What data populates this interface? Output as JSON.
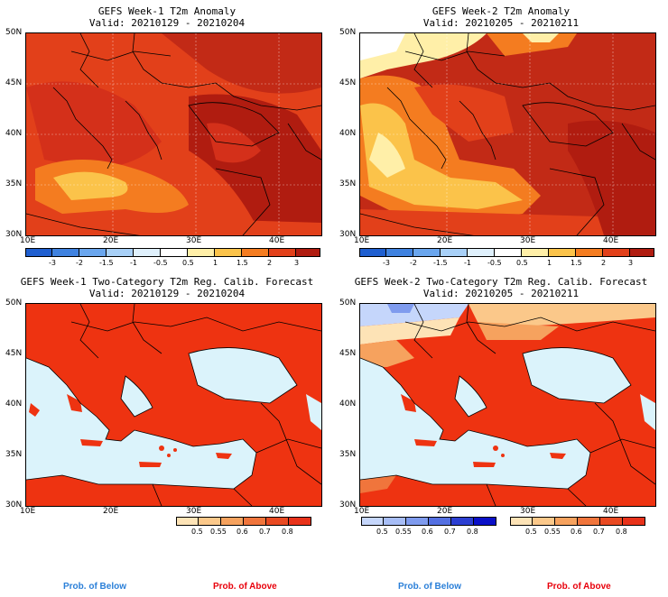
{
  "panels": [
    {
      "title": "GEFS Week-1 T2m Anomaly",
      "valid": "Valid: 20210129 - 20210204"
    },
    {
      "title": "GEFS Week-2 T2m Anomaly",
      "valid": "Valid: 20210205 - 20210211"
    },
    {
      "title": "GEFS Week-1 Two-Category T2m Reg. Calib. Forecast",
      "valid": "Valid: 20210129 - 20210204"
    },
    {
      "title": "GEFS Week-2 Two-Category T2m Reg. Calib. Forecast",
      "valid": "Valid: 20210205 - 20210211"
    }
  ],
  "lat_labels": [
    "50N",
    "45N",
    "40N",
    "35N",
    "30N"
  ],
  "lon_labels": [
    "10E",
    "20E",
    "30E",
    "40E"
  ],
  "anomaly_colorbar": {
    "labels": [
      "-3",
      "-2",
      "-1.5",
      "-1",
      "-0.5",
      "0.5",
      "1",
      "1.5",
      "2",
      "3"
    ],
    "colors": [
      "#1f5fd0",
      "#3f82e0",
      "#6aa6ee",
      "#a8d0f7",
      "#dff0fc",
      "#ffffff",
      "#ffefa8",
      "#fbc34a",
      "#f47c20",
      "#e2401a",
      "#b01c10"
    ]
  },
  "prob_colorbar": {
    "labels": [
      "0.5",
      "0.55",
      "0.6",
      "0.7",
      "0.8"
    ],
    "above_colors": [
      "#fde3b6",
      "#fbc88a",
      "#f6a25e",
      "#f0753c",
      "#e94a22",
      "#e8321a"
    ],
    "below_colors": [
      "#c5d6fb",
      "#a7bdf6",
      "#7f9bee",
      "#5470e2",
      "#2c3fd2",
      "#0a10c8"
    ]
  },
  "prob_labels": {
    "below": "Prob. of Below",
    "above": "Prob. of Above"
  },
  "colors": {
    "above_text": "#e8000b",
    "below_text": "#2a7fd8",
    "sea_prob": "#dbf3fb",
    "red_prob": "#ee3311"
  }
}
